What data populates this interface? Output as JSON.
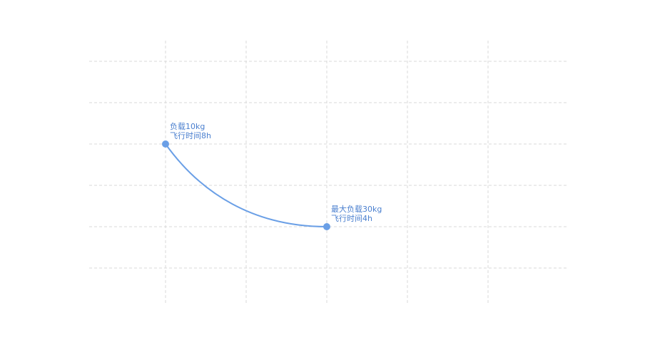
{
  "chart_data": {
    "type": "line",
    "x": [
      10,
      30
    ],
    "values": [
      8,
      4
    ],
    "color": "#6a9fe6",
    "annotations": [
      [
        "负载10kg",
        "飞行时间8h"
      ],
      [
        "最大负载30kg",
        "飞行时间4h"
      ]
    ],
    "xlim": [
      0,
      60
    ],
    "xticks": [
      10,
      20,
      30,
      40,
      50
    ],
    "ylim": [
      0,
      13
    ],
    "yticks": [
      2,
      4,
      6,
      8,
      10,
      12
    ],
    "grid": true
  }
}
